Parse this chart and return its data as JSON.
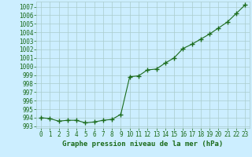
{
  "x": [
    0,
    1,
    2,
    3,
    4,
    5,
    6,
    7,
    8,
    9,
    10,
    11,
    12,
    13,
    14,
    15,
    16,
    17,
    18,
    19,
    20,
    21,
    22,
    23
  ],
  "y": [
    994.0,
    993.9,
    993.6,
    993.7,
    993.7,
    993.4,
    993.5,
    993.7,
    993.8,
    994.4,
    998.8,
    998.9,
    999.6,
    999.7,
    1000.4,
    1001.0,
    1002.1,
    1002.6,
    1003.2,
    1003.8,
    1004.5,
    1005.2,
    1006.2,
    1007.2
  ],
  "line_color": "#1a6b1a",
  "marker": "+",
  "marker_size": 4,
  "background_color": "#cceeff",
  "grid_color": "#aacccc",
  "xlabel": "Graphe pression niveau de la mer (hPa)",
  "ylim": [
    992.8,
    1007.6
  ],
  "yticks": [
    993,
    994,
    995,
    996,
    997,
    998,
    999,
    1000,
    1001,
    1002,
    1003,
    1004,
    1005,
    1006,
    1007
  ],
  "xticks": [
    0,
    1,
    2,
    3,
    4,
    5,
    6,
    7,
    8,
    9,
    10,
    11,
    12,
    13,
    14,
    15,
    16,
    17,
    18,
    19,
    20,
    21,
    22,
    23
  ],
  "tick_label_fontsize": 5.5,
  "xlabel_fontsize": 6.5
}
